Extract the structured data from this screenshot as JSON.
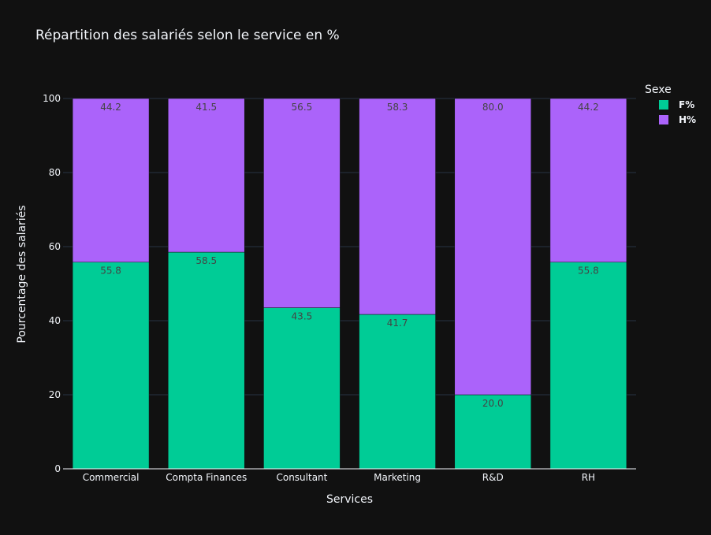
{
  "chart_data": {
    "type": "bar",
    "barmode": "stack",
    "title": "Répartition des salariés selon le service en %",
    "xlabel": "Services",
    "ylabel": "Pourcentage des salariés",
    "categories": [
      "Commercial",
      "Compta Finances",
      "Consultant",
      "Marketing",
      "R&D",
      "RH"
    ],
    "series": [
      {
        "name": "F%",
        "color": "#00cc96",
        "values": [
          55.8,
          58.5,
          43.5,
          41.7,
          20.0,
          55.8
        ]
      },
      {
        "name": "H%",
        "color": "#ab63fa",
        "values": [
          44.2,
          41.5,
          56.5,
          58.3,
          80.0,
          44.2
        ]
      }
    ],
    "ylim": [
      0,
      100
    ],
    "yticks": [
      0,
      20,
      40,
      60,
      80,
      100
    ],
    "grid": true,
    "legend_title": "Sexe",
    "legend_position": "top-right"
  },
  "colors": {
    "background": "#111111",
    "grid": "#283442",
    "text": "#f2f5fa",
    "label_text": "#444444"
  }
}
